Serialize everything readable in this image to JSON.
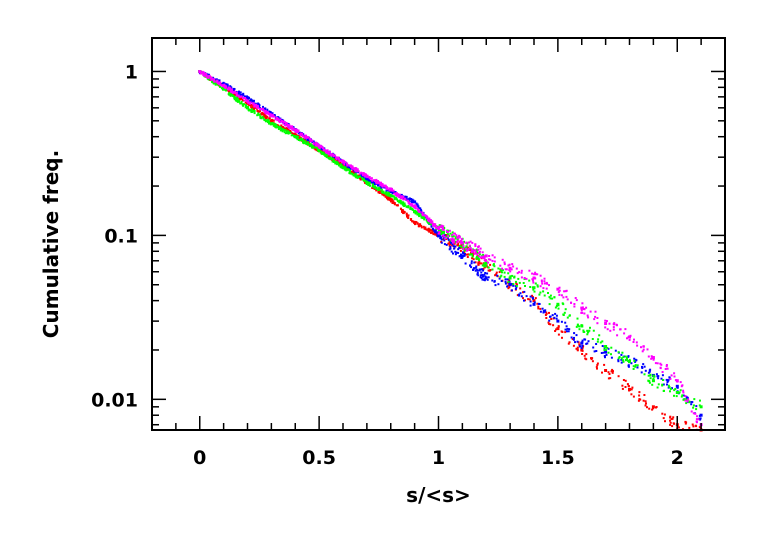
{
  "chart_data": {
    "type": "scatter",
    "title": "",
    "xlabel": "s/<s>",
    "ylabel": "Cumulative freq.",
    "xlim": [
      -0.2,
      2.2
    ],
    "ylim": [
      0.0065,
      1.6
    ],
    "yscale": "log",
    "grid": false,
    "legend": "none",
    "x_ticks": [
      0,
      0.5,
      1,
      1.5,
      2
    ],
    "x_tick_labels": [
      "0",
      "0.5",
      "1",
      "1.5",
      "2"
    ],
    "y_ticks": [
      1,
      0.1,
      0.01
    ],
    "y_tick_labels": [
      "1",
      "0.1",
      "0.01"
    ],
    "series": [
      {
        "color": "#ff0000",
        "x": [
          0.0,
          0.1,
          0.2,
          0.3,
          0.4,
          0.5,
          0.6,
          0.7,
          0.8,
          0.9,
          1.0,
          1.1,
          1.2,
          1.3,
          1.4,
          1.5,
          1.6,
          1.7,
          1.8,
          1.9,
          2.0,
          2.1
        ],
        "y": [
          1.0,
          0.8,
          0.64,
          0.5,
          0.41,
          0.33,
          0.27,
          0.21,
          0.165,
          0.12,
          0.1,
          0.085,
          0.065,
          0.05,
          0.04,
          0.027,
          0.02,
          0.015,
          0.0115,
          0.009,
          0.007,
          0.0065
        ]
      },
      {
        "color": "#0000ff",
        "x": [
          0.0,
          0.1,
          0.2,
          0.3,
          0.4,
          0.5,
          0.6,
          0.7,
          0.8,
          0.9,
          1.0,
          1.1,
          1.2,
          1.3,
          1.4,
          1.5,
          1.6,
          1.7,
          1.8,
          1.9,
          2.0,
          2.1
        ],
        "y": [
          1.0,
          0.84,
          0.69,
          0.55,
          0.44,
          0.35,
          0.28,
          0.22,
          0.185,
          0.16,
          0.1,
          0.075,
          0.055,
          0.05,
          0.038,
          0.03,
          0.022,
          0.0195,
          0.017,
          0.014,
          0.012,
          0.008
        ]
      },
      {
        "color": "#00ff00",
        "x": [
          0.0,
          0.1,
          0.2,
          0.3,
          0.4,
          0.5,
          0.6,
          0.7,
          0.8,
          0.9,
          1.0,
          1.1,
          1.2,
          1.3,
          1.4,
          1.5,
          1.6,
          1.7,
          1.8,
          1.9,
          2.0,
          2.1
        ],
        "y": [
          1.0,
          0.78,
          0.6,
          0.48,
          0.4,
          0.33,
          0.26,
          0.21,
          0.175,
          0.14,
          0.11,
          0.09,
          0.068,
          0.055,
          0.048,
          0.038,
          0.028,
          0.021,
          0.017,
          0.013,
          0.011,
          0.009
        ]
      },
      {
        "color": "#ff00ff",
        "x": [
          0.0,
          0.1,
          0.2,
          0.3,
          0.4,
          0.5,
          0.6,
          0.7,
          0.8,
          0.9,
          1.0,
          1.1,
          1.2,
          1.3,
          1.4,
          1.5,
          1.6,
          1.7,
          1.8,
          1.9,
          2.0,
          2.1
        ],
        "y": [
          1.0,
          0.82,
          0.66,
          0.54,
          0.44,
          0.35,
          0.28,
          0.23,
          0.19,
          0.15,
          0.11,
          0.09,
          0.075,
          0.063,
          0.055,
          0.047,
          0.036,
          0.029,
          0.024,
          0.018,
          0.013,
          0.007
        ]
      }
    ]
  }
}
